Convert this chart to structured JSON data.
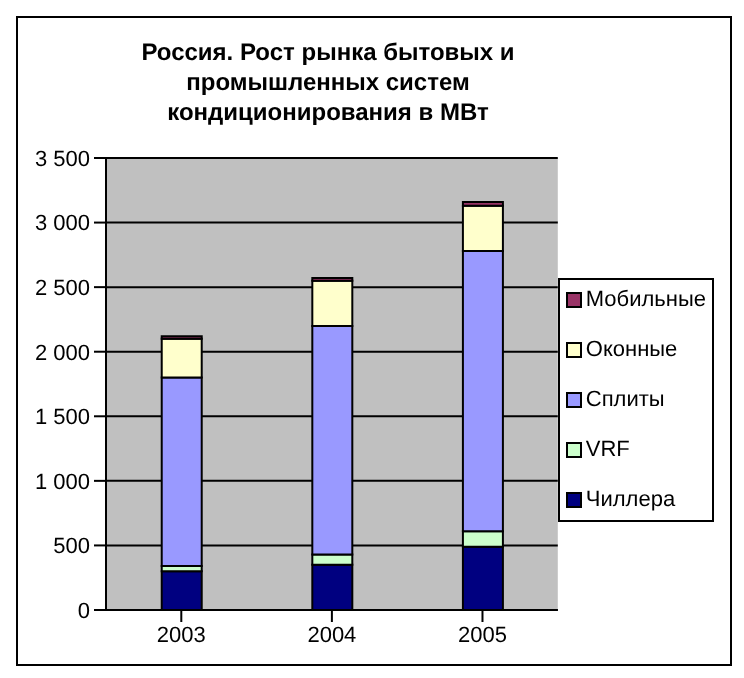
{
  "chart_data": {
    "type": "bar",
    "title": "Россия. Рост рынка бытовых и промышленных систем кондиционирования в МВт",
    "categories": [
      "2003",
      "2004",
      "2005"
    ],
    "stacked": true,
    "series": [
      {
        "name": "Чиллера",
        "color": "#000080",
        "values": [
          300,
          350,
          490
        ]
      },
      {
        "name": "VRF",
        "color": "#ccffcc",
        "values": [
          40,
          80,
          120
        ]
      },
      {
        "name": "Сплиты",
        "color": "#9999ff",
        "values": [
          1460,
          1770,
          2170
        ]
      },
      {
        "name": "Оконные",
        "color": "#ffffcc",
        "values": [
          300,
          350,
          350
        ]
      },
      {
        "name": "Мобильные",
        "color": "#993366",
        "values": [
          20,
          20,
          30
        ]
      }
    ],
    "ylim": [
      0,
      3500
    ],
    "yticks": [
      {
        "value": 0,
        "label": "0"
      },
      {
        "value": 500,
        "label": "500"
      },
      {
        "value": 1000,
        "label": "1 000"
      },
      {
        "value": 1500,
        "label": "1 500"
      },
      {
        "value": 2000,
        "label": "2 000"
      },
      {
        "value": 2500,
        "label": "2 500"
      },
      {
        "value": 3000,
        "label": "3 000"
      },
      {
        "value": 3500,
        "label": "3 500"
      }
    ],
    "grid": "y",
    "legend": "right"
  }
}
